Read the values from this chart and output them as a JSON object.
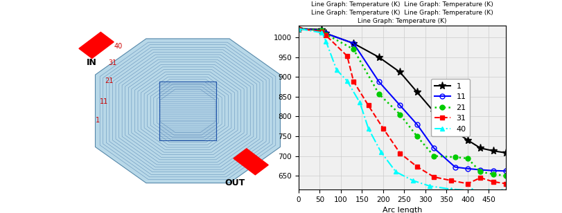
{
  "title": "Line Graph: Temperature (K)  Line Graph: Temperature (K)\nLine Graph: Temperature (K)  Line Graph: Temperature (K)\nLine Graph: Temperature (K)",
  "xlabel": "Arc length",
  "xlim": [
    0,
    490
  ],
  "ylim": [
    615,
    1030
  ],
  "yticks": [
    650,
    700,
    750,
    800,
    850,
    900,
    950,
    1000
  ],
  "xticks": [
    0,
    50,
    100,
    150,
    200,
    250,
    300,
    350,
    400,
    450
  ],
  "bg_color": "#ddeeff",
  "chart_bg": "#f0f0f0",
  "series": [
    {
      "label": "1",
      "color": "black",
      "linestyle": "-",
      "marker": "*",
      "markersize": 8,
      "linewidth": 1.5,
      "x": [
        0,
        55,
        65,
        130,
        190,
        240,
        280,
        320,
        370,
        400,
        430,
        460,
        490
      ],
      "y": [
        1022,
        1020,
        1010,
        985,
        950,
        912,
        862,
        812,
        762,
        740,
        720,
        713,
        708
      ]
    },
    {
      "label": "11",
      "color": "blue",
      "linestyle": "-",
      "marker": "o",
      "markersize": 5,
      "linewidth": 1.5,
      "x": [
        0,
        55,
        65,
        130,
        190,
        240,
        280,
        320,
        370,
        400,
        430,
        460,
        490
      ],
      "y": [
        1022,
        1018,
        1010,
        985,
        888,
        828,
        780,
        720,
        672,
        668,
        665,
        663,
        662
      ]
    },
    {
      "label": "21",
      "color": "#00cc00",
      "linestyle": ":",
      "marker": "o",
      "markersize": 5,
      "linewidth": 1.8,
      "x": [
        0,
        55,
        65,
        130,
        190,
        240,
        280,
        320,
        370,
        400,
        430,
        460,
        490
      ],
      "y": [
        1022,
        1018,
        1008,
        970,
        857,
        805,
        750,
        700,
        697,
        694,
        660,
        654,
        650
      ]
    },
    {
      "label": "31",
      "color": "red",
      "linestyle": "--",
      "marker": "s",
      "markersize": 5,
      "linewidth": 1.5,
      "x": [
        0,
        55,
        65,
        115,
        130,
        165,
        200,
        240,
        280,
        320,
        360,
        400,
        430,
        460,
        490
      ],
      "y": [
        1022,
        1015,
        1005,
        953,
        889,
        828,
        770,
        707,
        673,
        647,
        638,
        630,
        645,
        635,
        630
      ]
    },
    {
      "label": "40",
      "color": "cyan",
      "linestyle": "-.",
      "marker": "^",
      "markersize": 5,
      "linewidth": 1.5,
      "x": [
        0,
        55,
        65,
        90,
        115,
        145,
        165,
        195,
        230,
        270,
        310,
        360,
        410,
        450,
        480,
        490
      ],
      "y": [
        1022,
        1012,
        990,
        918,
        890,
        835,
        770,
        710,
        660,
        638,
        624,
        616,
        613,
        612,
        611,
        611
      ]
    }
  ],
  "hex_bg": "#add8e6",
  "left_labels": [
    "40",
    "31",
    "21",
    "11",
    "1"
  ],
  "left_label_colors": [
    "#cc0000",
    "#cc0000",
    "#cc0000",
    "#cc0000",
    "#cc0000"
  ]
}
